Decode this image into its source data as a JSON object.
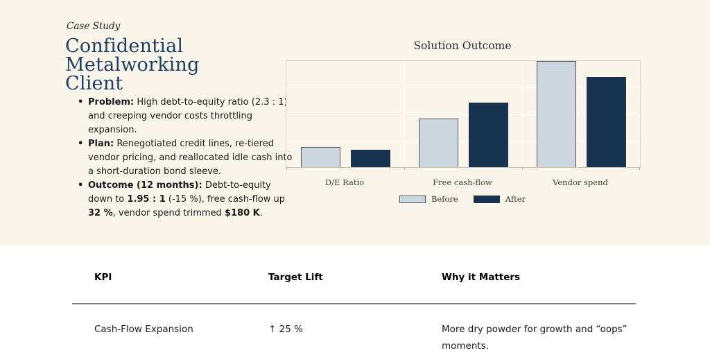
{
  "page": {
    "background": "#ffffff",
    "panel_background": "#f9f5eb",
    "accent_navy": "#1d3e60"
  },
  "case_study": {
    "eyebrow": "Case Study",
    "title_lines": [
      "Confidential",
      "Metalworking",
      "Client"
    ],
    "bullets": [
      {
        "segments": [
          {
            "t": "Problem:",
            "b": true
          },
          {
            "t": " High debt-to-equity ratio (2.3 : 1) and creeping vendor costs throttling expansion.",
            "b": false
          }
        ]
      },
      {
        "segments": [
          {
            "t": "Plan:",
            "b": true
          },
          {
            "t": " Renegotiated credit lines, re-tiered vendor pricing, and reallocated idle cash into a short-duration bond sleeve.",
            "b": false
          }
        ]
      },
      {
        "segments": [
          {
            "t": "Outcome (12 months):",
            "b": true
          },
          {
            "t": " Debt-to-equity down to ",
            "b": false
          },
          {
            "t": "1.95 : 1",
            "b": true
          },
          {
            "t": " (-15 %), free cash-flow up ",
            "b": false
          },
          {
            "t": "32 %",
            "b": true
          },
          {
            "t": ", vendor spend trimmed ",
            "b": false
          },
          {
            "t": "$180 K",
            "b": true
          },
          {
            "t": ".",
            "b": false
          }
        ]
      }
    ]
  },
  "chart_data": {
    "type": "bar",
    "title": "Solution Outcome",
    "categories": [
      "D/E Ratio",
      "Free cash-flow",
      "Vendor spend"
    ],
    "series": [
      {
        "name": "Before",
        "values": [
          2.3,
          5.5,
          12.0
        ],
        "color": "#cdd5de",
        "edge_color": "#4d5358"
      },
      {
        "name": "After",
        "values": [
          1.95,
          7.3,
          10.2
        ],
        "color": "#17334f",
        "edge_color": "#233140"
      }
    ],
    "ylim": [
      0,
      12
    ],
    "grid": true,
    "gridline_values": [
      3,
      6,
      9
    ],
    "legend_position": "bottom",
    "xlabel": "",
    "ylabel": ""
  },
  "table": {
    "headers": [
      "KPI",
      "Target Lift",
      "Why it Matters"
    ],
    "rows": [
      [
        "Cash-Flow Expansion",
        "↑ 25 %",
        "More dry powder for growth and “oops” moments."
      ]
    ]
  }
}
